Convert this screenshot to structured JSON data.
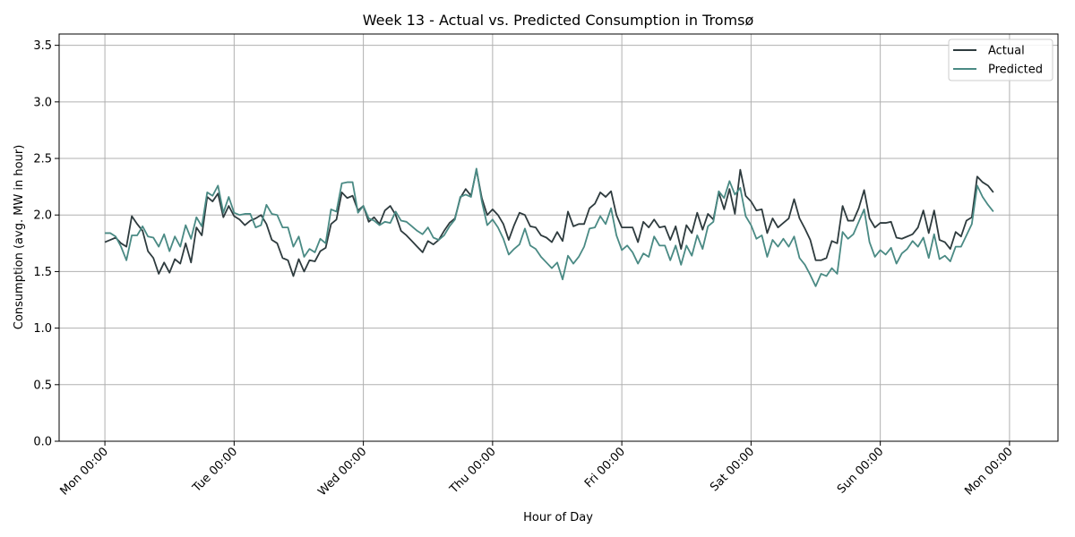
{
  "chart_data": {
    "type": "line",
    "title": "Week 13 - Actual vs. Predicted Consumption in Tromsø",
    "xlabel": "Hour of Day",
    "ylabel": "Consumption (avg. MW in hour)",
    "ylim": [
      0,
      3.6
    ],
    "yticks": [
      0.0,
      0.5,
      1.0,
      1.5,
      2.0,
      2.5,
      3.0,
      3.5
    ],
    "ytick_labels": [
      "0.0",
      "0.5",
      "1.0",
      "1.5",
      "2.0",
      "2.5",
      "3.0",
      "3.5"
    ],
    "xlim_hours": [
      -8.5,
      177
    ],
    "xticks_hours": [
      0,
      24,
      48,
      72,
      96,
      120,
      144,
      168
    ],
    "xtick_labels": [
      "Mon 00:00",
      "Tue 00:00",
      "Wed 00:00",
      "Thu 00:00",
      "Fri 00:00",
      "Sat 00:00",
      "Sun 00:00",
      "Mon 00:00"
    ],
    "grid": true,
    "legend_position": "top-right",
    "series": [
      {
        "name": "Actual",
        "color": "#2e3b3e",
        "values": [
          1.76,
          1.78,
          1.8,
          1.75,
          1.72,
          1.99,
          1.92,
          1.86,
          1.68,
          1.62,
          1.48,
          1.58,
          1.49,
          1.61,
          1.57,
          1.75,
          1.58,
          1.89,
          1.82,
          2.16,
          2.12,
          2.19,
          1.98,
          2.08,
          1.99,
          1.96,
          1.91,
          1.95,
          1.97,
          2.0,
          1.92,
          1.78,
          1.75,
          1.62,
          1.6,
          1.46,
          1.61,
          1.5,
          1.6,
          1.59,
          1.68,
          1.71,
          1.92,
          1.96,
          2.2,
          2.15,
          2.17,
          2.04,
          2.08,
          1.94,
          1.98,
          1.92,
          2.04,
          2.08,
          2.0,
          1.86,
          1.82,
          1.77,
          1.72,
          1.67,
          1.77,
          1.74,
          1.78,
          1.86,
          1.93,
          1.97,
          2.15,
          2.23,
          2.17,
          2.4,
          2.15,
          2.0,
          2.05,
          2.0,
          1.92,
          1.78,
          1.91,
          2.02,
          2.0,
          1.9,
          1.89,
          1.82,
          1.8,
          1.76,
          1.85,
          1.77,
          2.03,
          1.9,
          1.92,
          1.92,
          2.06,
          2.1,
          2.2,
          2.16,
          2.21,
          2.0,
          1.89,
          1.89,
          1.89,
          1.76,
          1.94,
          1.89,
          1.96,
          1.89,
          1.9,
          1.78,
          1.9,
          1.7,
          1.91,
          1.84,
          2.02,
          1.87,
          2.01,
          1.96,
          2.2,
          2.05,
          2.23,
          2.01,
          2.4,
          2.17,
          2.12,
          2.04,
          2.05,
          1.84,
          1.97,
          1.89,
          1.93,
          1.97,
          2.14,
          1.97,
          1.88,
          1.78,
          1.6,
          1.6,
          1.62,
          1.77,
          1.75,
          2.08,
          1.95,
          1.95,
          2.06,
          2.22,
          1.97,
          1.89,
          1.93,
          1.93,
          1.94,
          1.8,
          1.79,
          1.81,
          1.83,
          1.89,
          2.04,
          1.84,
          2.04,
          1.78,
          1.76,
          1.7,
          1.85,
          1.81,
          1.95,
          1.98,
          2.34,
          2.29,
          2.26,
          2.2
        ]
      },
      {
        "name": "Predicted",
        "color": "#4a8a84",
        "values": [
          1.84,
          1.84,
          1.81,
          1.72,
          1.6,
          1.82,
          1.82,
          1.9,
          1.81,
          1.8,
          1.72,
          1.83,
          1.68,
          1.81,
          1.72,
          1.91,
          1.79,
          1.98,
          1.9,
          2.2,
          2.17,
          2.26,
          2.02,
          2.16,
          2.02,
          2.0,
          2.01,
          2.01,
          1.89,
          1.91,
          2.09,
          2.01,
          2.0,
          1.89,
          1.89,
          1.72,
          1.81,
          1.63,
          1.7,
          1.67,
          1.79,
          1.75,
          2.05,
          2.03,
          2.28,
          2.29,
          2.29,
          2.02,
          2.08,
          1.97,
          1.95,
          1.91,
          1.94,
          1.93,
          2.03,
          1.95,
          1.94,
          1.9,
          1.86,
          1.83,
          1.89,
          1.8,
          1.78,
          1.82,
          1.9,
          1.96,
          2.16,
          2.18,
          2.16,
          2.41,
          2.12,
          1.91,
          1.96,
          1.89,
          1.79,
          1.65,
          1.7,
          1.74,
          1.88,
          1.73,
          1.7,
          1.63,
          1.58,
          1.53,
          1.58,
          1.43,
          1.64,
          1.57,
          1.63,
          1.72,
          1.88,
          1.89,
          1.99,
          1.92,
          2.06,
          1.82,
          1.69,
          1.73,
          1.67,
          1.57,
          1.66,
          1.63,
          1.81,
          1.73,
          1.73,
          1.6,
          1.73,
          1.56,
          1.73,
          1.64,
          1.82,
          1.7,
          1.9,
          1.94,
          2.21,
          2.15,
          2.3,
          2.18,
          2.24,
          1.99,
          1.91,
          1.79,
          1.82,
          1.63,
          1.78,
          1.72,
          1.79,
          1.72,
          1.81,
          1.62,
          1.56,
          1.47,
          1.37,
          1.48,
          1.46,
          1.53,
          1.48,
          1.85,
          1.79,
          1.83,
          1.94,
          2.05,
          1.76,
          1.63,
          1.69,
          1.65,
          1.71,
          1.57,
          1.66,
          1.7,
          1.77,
          1.72,
          1.8,
          1.62,
          1.83,
          1.61,
          1.64,
          1.59,
          1.72,
          1.72,
          1.82,
          1.92,
          2.26,
          2.16,
          2.09,
          2.03
        ]
      }
    ]
  }
}
